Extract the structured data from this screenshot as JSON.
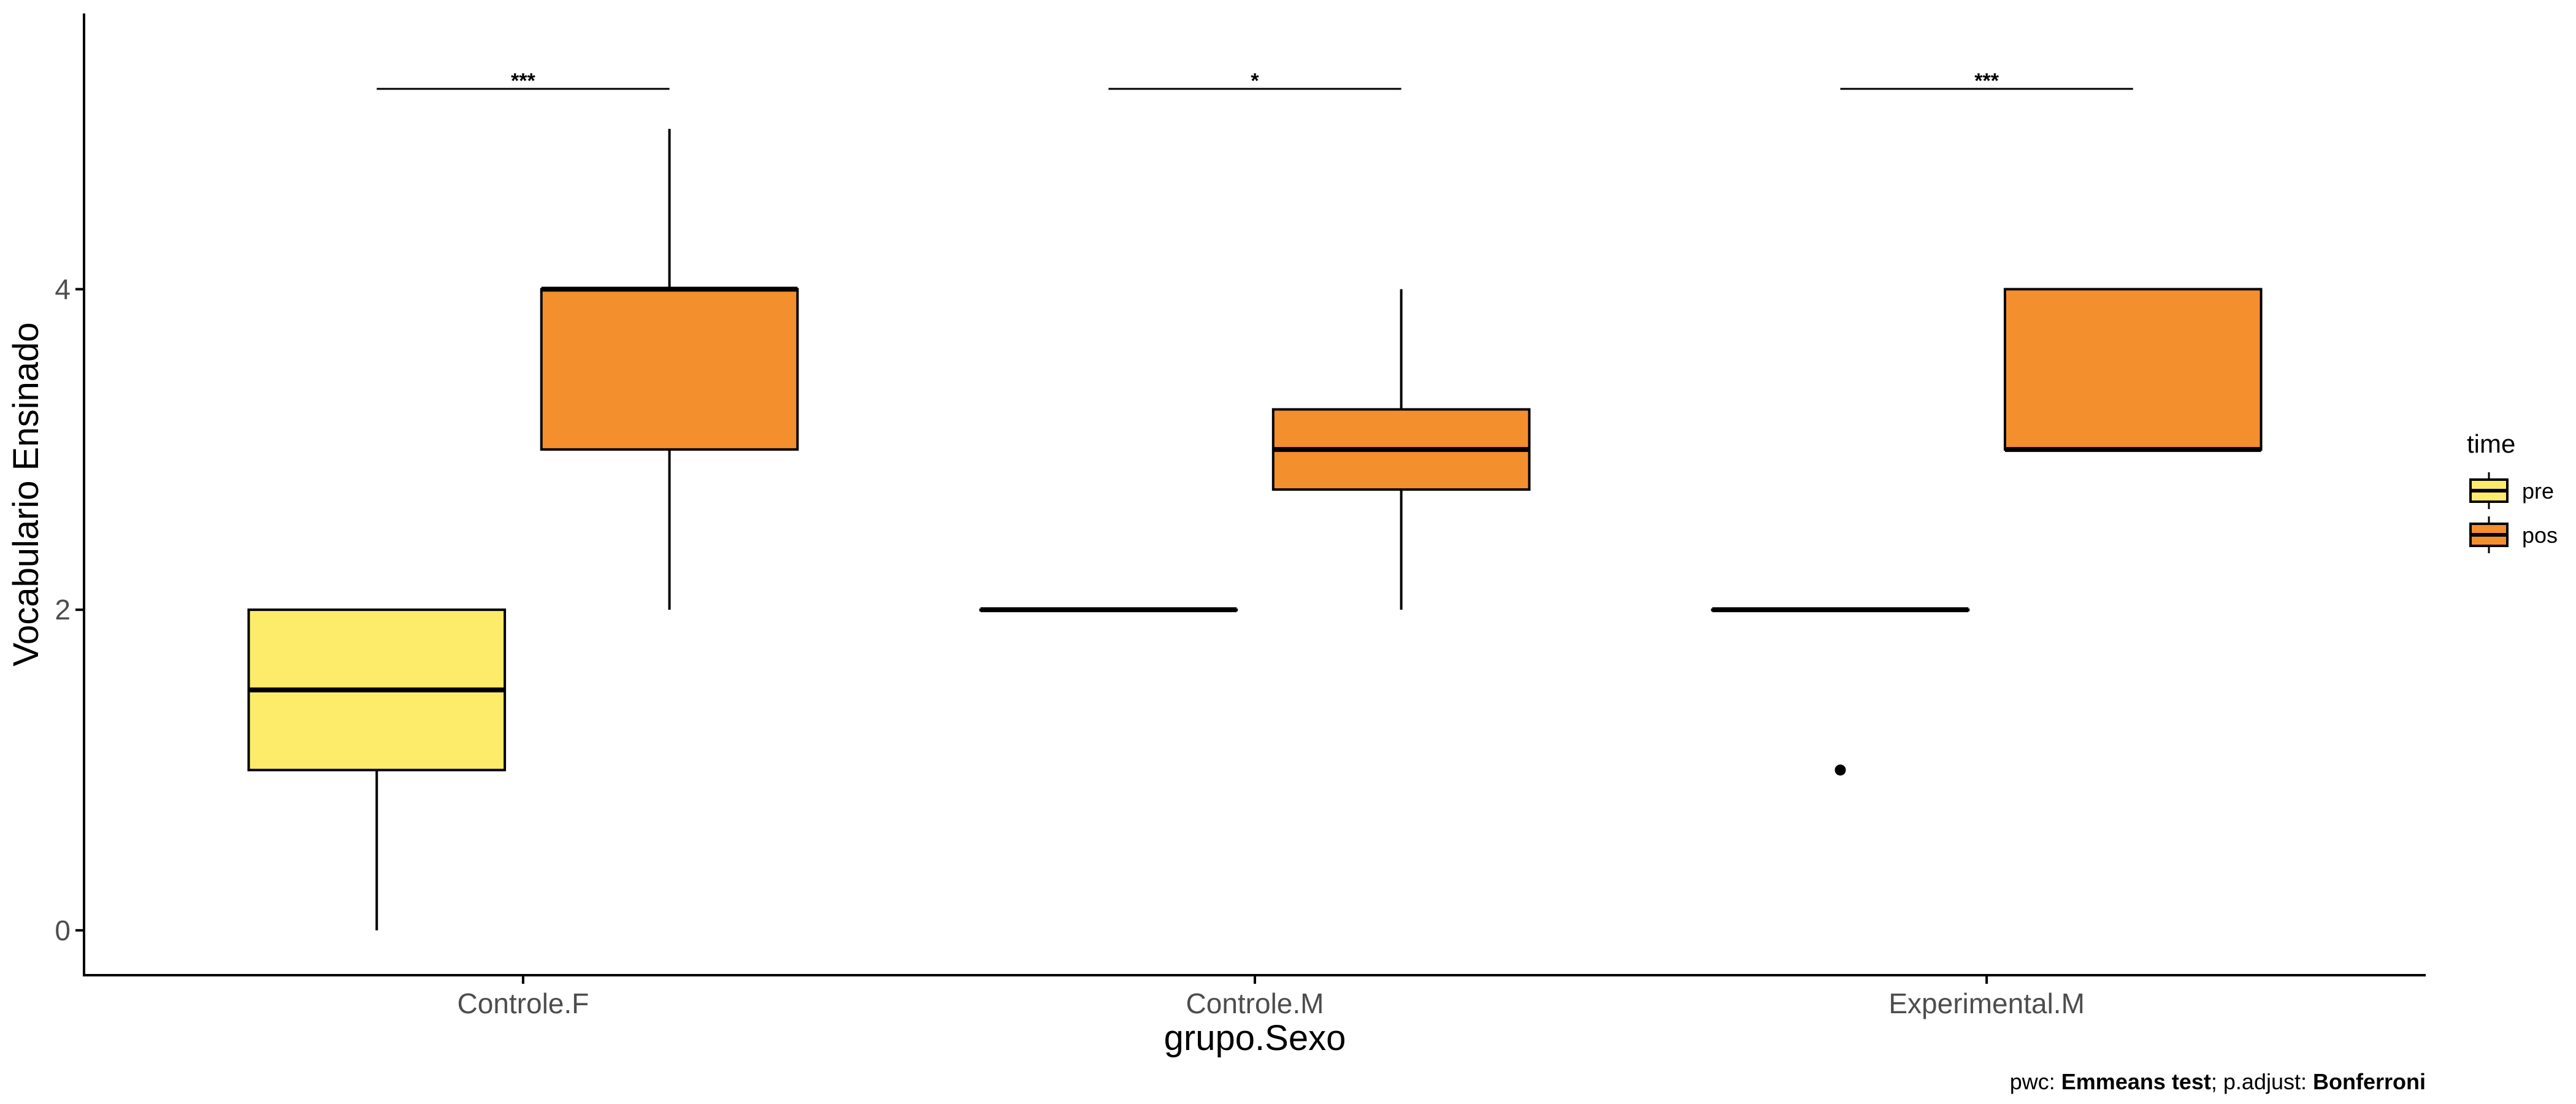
{
  "chart_data": {
    "type": "box",
    "xlabel": "grupo.Sexo",
    "ylabel": "Vocabulario Ensinado",
    "ylim": [
      -0.28,
      5.72
    ],
    "yticks": [
      0,
      2,
      4
    ],
    "categories": [
      "Controle.F",
      "Controle.M",
      "Experimental.M"
    ],
    "legend": {
      "title": "time",
      "position": "right",
      "entries": [
        {
          "label": "pre",
          "color": "#fdec6a"
        },
        {
          "label": "pos",
          "color": "#f48f2e"
        }
      ]
    },
    "series": [
      {
        "name": "pre",
        "color": "#fdec6a",
        "boxes": [
          {
            "min": 0,
            "q1": 1,
            "median": 1.5,
            "q3": 2,
            "max": 2,
            "outliers": []
          },
          {
            "min": 2,
            "q1": 2,
            "median": 2,
            "q3": 2,
            "max": 2,
            "outliers": []
          },
          {
            "min": 2,
            "q1": 2,
            "median": 2,
            "q3": 2,
            "max": 2,
            "outliers": [
              1
            ]
          }
        ]
      },
      {
        "name": "pos",
        "color": "#f48f2e",
        "boxes": [
          {
            "min": 2,
            "q1": 3,
            "median": 4,
            "q3": 4,
            "max": 5,
            "outliers": []
          },
          {
            "min": 2,
            "q1": 2.75,
            "median": 3,
            "q3": 3.25,
            "max": 4,
            "outliers": []
          },
          {
            "min": 3,
            "q1": 3,
            "median": 3,
            "q3": 4,
            "max": 4,
            "outliers": []
          }
        ]
      }
    ],
    "significance": [
      {
        "category": "Controle.F",
        "label": "***",
        "y": 5.25
      },
      {
        "category": "Controle.M",
        "label": "*",
        "y": 5.25
      },
      {
        "category": "Experimental.M",
        "label": "***",
        "y": 5.25
      }
    ],
    "caption": {
      "prefix": "pwc: ",
      "test": "Emmeans test",
      "mid": "; p.adjust: ",
      "method": "Bonferroni"
    }
  }
}
